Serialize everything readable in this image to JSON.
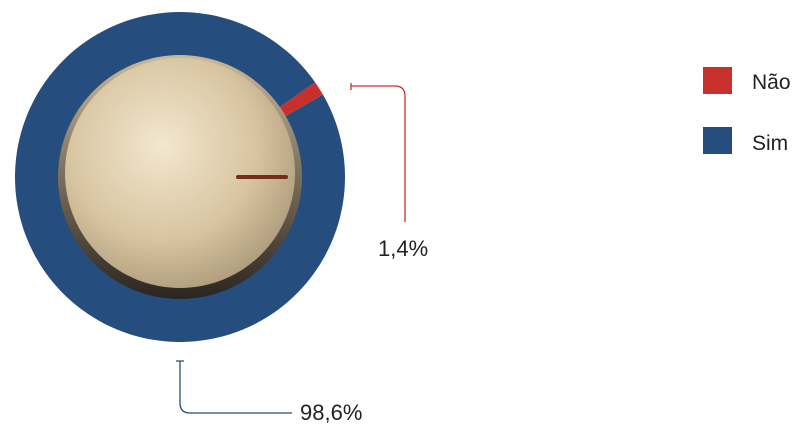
{
  "chart_data": {
    "type": "pie",
    "style": "donut-knob",
    "categories": [
      "Não",
      "Sim"
    ],
    "values": [
      1.4,
      98.6
    ],
    "unit": "%",
    "colors": {
      "Não": "#c8312b",
      "Sim": "#254d7e"
    },
    "data_labels": [
      "1,4%",
      "98,6%"
    ],
    "legend": {
      "placement": "top-right",
      "entries": [
        "Não",
        "Sim"
      ]
    },
    "title": ""
  }
}
